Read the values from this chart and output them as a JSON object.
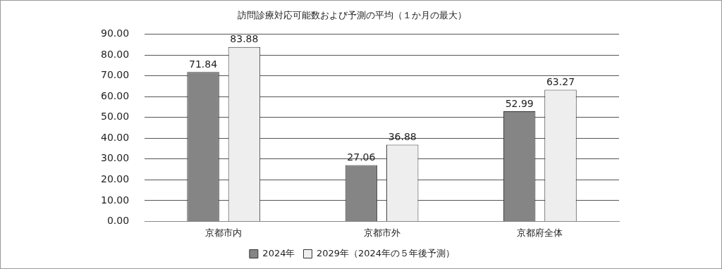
{
  "chart_data": {
    "type": "bar",
    "title": "訪問診療対応可能数および予測の平均（１か月の最大）",
    "categories": [
      "京都市内",
      "京都市外",
      "京都府全体"
    ],
    "series": [
      {
        "name": "2024年",
        "color": "#858585",
        "values": [
          71.84,
          27.06,
          52.99
        ]
      },
      {
        "name": "2029年（2024年の５年後予測）",
        "color": "#eeeeee",
        "values": [
          83.88,
          36.88,
          63.27
        ]
      }
    ],
    "ylim": [
      0,
      90
    ],
    "yticks": [
      {
        "value": 0,
        "label": "0.00"
      },
      {
        "value": 10,
        "label": "10.00"
      },
      {
        "value": 20,
        "label": "20.00"
      },
      {
        "value": 30,
        "label": "30.00"
      },
      {
        "value": 40,
        "label": "40.00"
      },
      {
        "value": 50,
        "label": "50.00"
      },
      {
        "value": 60,
        "label": "60.00"
      },
      {
        "value": 70,
        "label": "70.00"
      },
      {
        "value": 80,
        "label": "80.00"
      },
      {
        "value": 90,
        "label": "90.00"
      }
    ],
    "grid": "y",
    "legend": "bottom",
    "data_labels": true
  }
}
